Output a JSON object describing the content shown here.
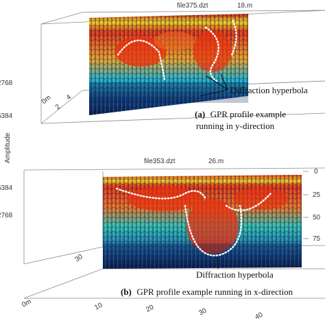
{
  "panel_a": {
    "filename": "file375.dzt",
    "length_label": "18.m",
    "left_ticks": [
      "2768",
      "6384"
    ],
    "axis_ticks": [
      "0m",
      "2",
      "4"
    ],
    "callout": "Diffraction hyperbola",
    "caption_letter": "(a)",
    "caption_line1": "GPR profile example",
    "caption_line2": "running in y-direction"
  },
  "shared": {
    "amplitude_label": "Amplitude"
  },
  "panel_b": {
    "filename": "file353.dzt",
    "length_label": "26.m",
    "left_ticks": [
      "6384",
      "2768"
    ],
    "right_ticks": [
      "0",
      "25",
      "50",
      "75"
    ],
    "bottom_ticks": [
      "0m",
      "10",
      "20",
      "30",
      "40"
    ],
    "depth_tick": "30",
    "callout": "Diffraction hyperbola",
    "caption_letter": "(b)",
    "caption_text": "GPR profile example running in x-direction"
  },
  "colors": {
    "frame_line": "#888888",
    "hot": "#e83010",
    "warm": "#f5d21a",
    "cool": "#20b0c8",
    "dark": "#0a1a4a",
    "marker": "#ffffff"
  }
}
